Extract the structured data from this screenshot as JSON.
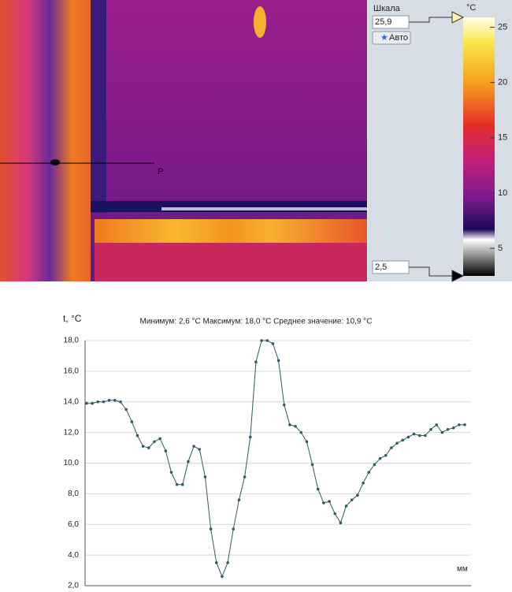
{
  "thermal": {
    "scale_label": "Шкала",
    "auto_button": "Авто",
    "unit": "°C",
    "point_label": "P",
    "scale": {
      "max": {
        "value": 25.9,
        "label": "25,9"
      },
      "min": {
        "value": 2.5,
        "label": "2,5"
      },
      "ticks": [
        25,
        20,
        15,
        10,
        5
      ]
    }
  },
  "chart_data": {
    "type": "line",
    "subtitle": "Минимум: 2,6 °C Максимум: 18,0 °C Среднее значение: 10,9 °C",
    "y_axis_label": "t, °C",
    "x_axis_label": "мм",
    "categories": [
      null,
      null,
      null,
      null,
      null,
      null,
      null,
      null,
      null,
      null,
      null,
      null,
      null,
      null,
      null,
      null,
      null,
      null,
      null,
      null,
      null,
      null,
      null,
      null,
      null,
      null,
      null,
      null,
      null,
      null,
      null,
      null,
      null,
      null,
      null,
      null,
      null,
      null,
      null,
      null,
      null,
      null,
      null,
      null,
      null,
      null,
      null,
      null,
      null,
      null,
      null,
      null,
      null,
      null,
      null,
      null,
      null,
      null,
      null,
      null,
      null,
      null,
      null,
      null,
      null,
      null,
      null,
      null
    ],
    "series": [
      {
        "color": "#2f5b63",
        "values": [
          13.9,
          13.9,
          14.0,
          14.0,
          14.1,
          14.1,
          14.0,
          13.5,
          12.7,
          11.8,
          11.1,
          11.0,
          11.4,
          11.6,
          10.8,
          9.4,
          8.6,
          8.6,
          10.1,
          11.1,
          10.9,
          9.1,
          5.7,
          3.5,
          2.6,
          3.5,
          5.7,
          7.6,
          9.1,
          11.7,
          16.6,
          18.0,
          18.0,
          17.8,
          16.7,
          13.8,
          12.5,
          12.4,
          12.0,
          11.4,
          9.9,
          8.3,
          7.4,
          7.5,
          6.7,
          6.1,
          7.2,
          7.6,
          7.9,
          8.7,
          9.4,
          9.9,
          10.3,
          10.5,
          11.0,
          11.3,
          11.5,
          11.7,
          11.9,
          11.8,
          11.8,
          12.2,
          12.5,
          12.0,
          12.2,
          12.3,
          12.5,
          12.5
        ]
      }
    ],
    "ylim": [
      2,
      18
    ],
    "yticks": [
      {
        "value": 2,
        "label": "2,0"
      },
      {
        "value": 4,
        "label": "4,0"
      },
      {
        "value": 6,
        "label": "6,0"
      },
      {
        "value": 8,
        "label": "8,0"
      },
      {
        "value": 10,
        "label": "10,0"
      },
      {
        "value": 12,
        "label": "12,0"
      },
      {
        "value": 14,
        "label": "14,0"
      },
      {
        "value": 16,
        "label": "16,0"
      },
      {
        "value": 18,
        "label": "18,0"
      }
    ],
    "grid": true
  }
}
